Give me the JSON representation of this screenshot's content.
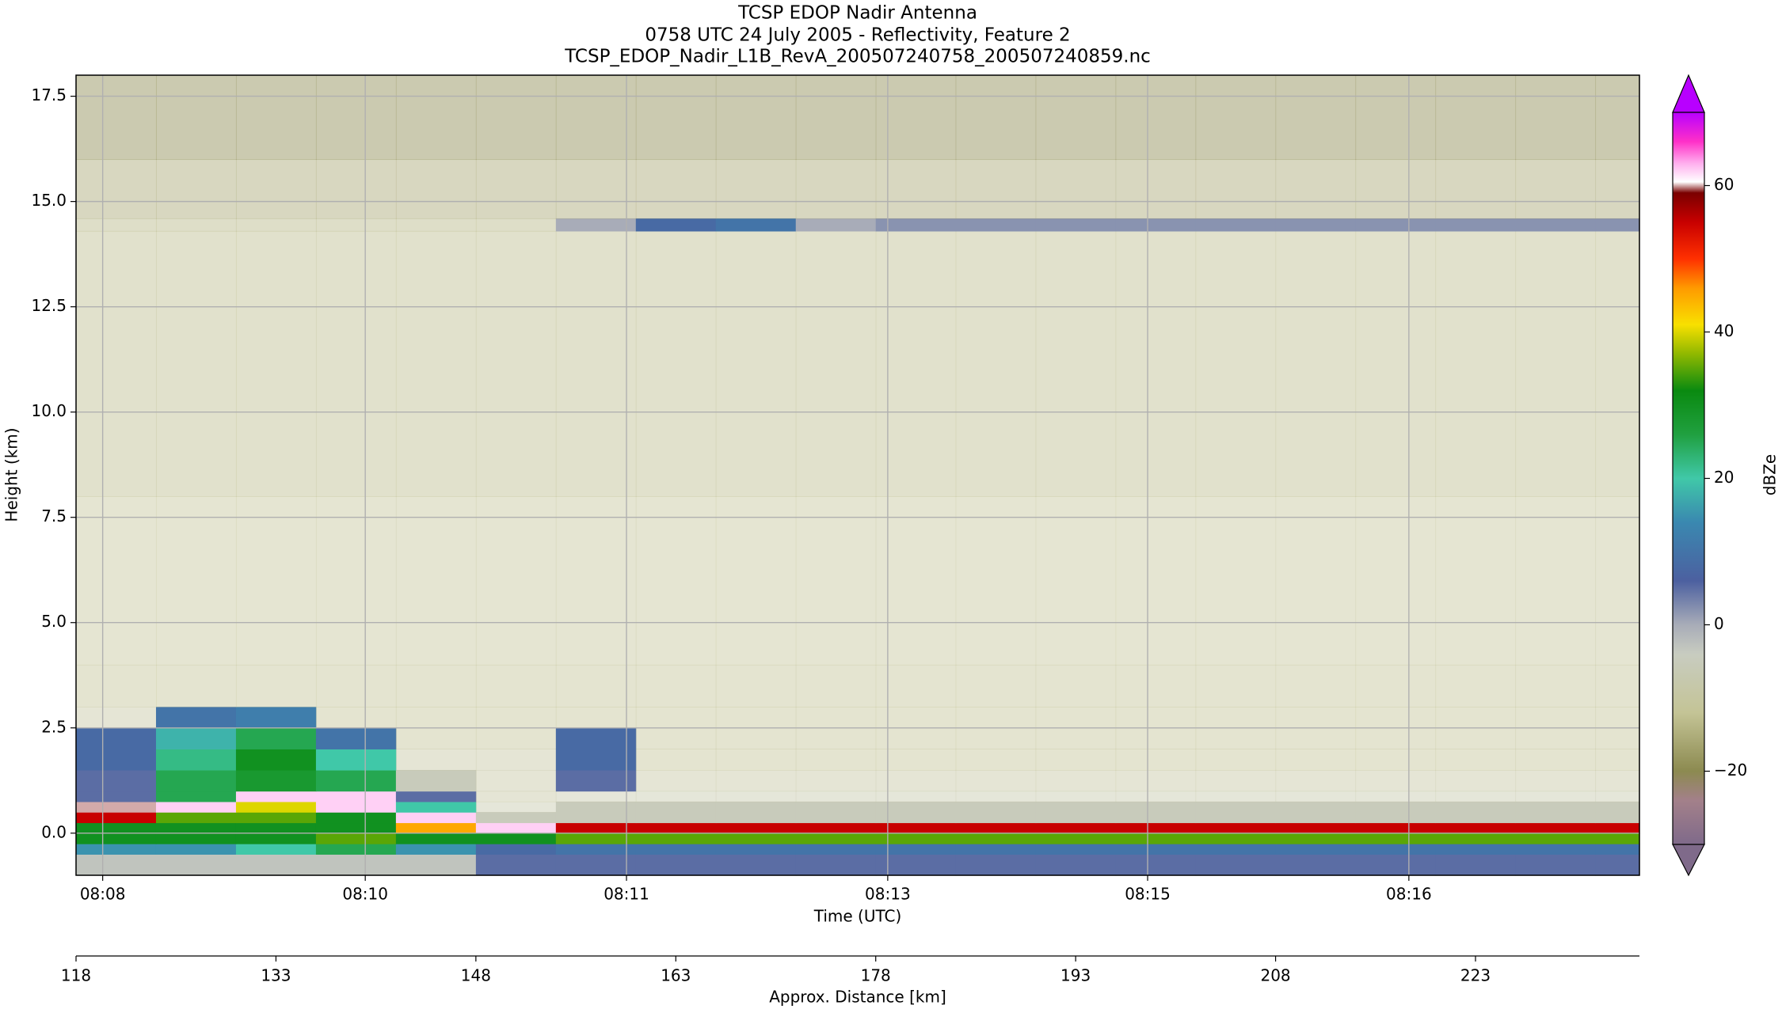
{
  "chart_data": {
    "type": "heatmap",
    "title": [
      "TCSP EDOP Nadir Antenna",
      "0758 UTC 24 July 2005 - Reflectivity, Feature 2",
      "TCSP_EDOP_Nadir_L1B_RevA_200507240758_200507240859.nc"
    ],
    "ylabel": "Height (km)",
    "xlabel": "Time (UTC)",
    "x2label": "Approx. Distance [km]",
    "cbar_label": "dBZe",
    "xlim": [
      118,
      235.3
    ],
    "ylim": [
      -1.0,
      18.0
    ],
    "yticks": [
      {
        "value": 0,
        "label": "0.0"
      },
      2.5,
      {
        "value": 5,
        "label": "5.0"
      },
      7.5,
      {
        "value": 10,
        "label": "10.0"
      },
      12.5,
      {
        "value": 15,
        "label": "15.0"
      },
      17.5
    ],
    "time_ticks": [
      {
        "value": 120,
        "label": "08:08"
      },
      {
        "value": 139.7,
        "label": "08:10"
      },
      {
        "value": 159.3,
        "label": "08:11"
      },
      {
        "value": 178.9,
        "label": "08:13"
      },
      {
        "value": 198.4,
        "label": "08:15"
      },
      {
        "value": 218,
        "label": "08:16"
      }
    ],
    "xticks": [
      118,
      133,
      148,
      163,
      178,
      193,
      208,
      223
    ],
    "grid": true,
    "clim": [
      -30,
      70
    ],
    "cbar_ticks": [
      {
        "value": -20,
        "label": "−20"
      },
      0,
      20,
      40,
      60
    ],
    "colormap": [
      {
        "value": -30,
        "color": "#7f6a8a"
      },
      {
        "value": -24,
        "color": "#a3808a"
      },
      {
        "value": -20,
        "color": "#8c8a50"
      },
      {
        "value": -12,
        "color": "#c4c496"
      },
      {
        "value": -4,
        "color": "#c8ccc0"
      },
      {
        "value": 0,
        "color": "#a8acb8"
      },
      {
        "value": 6,
        "color": "#4c60a0"
      },
      {
        "value": 14,
        "color": "#3a88b0"
      },
      {
        "value": 20,
        "color": "#40c8a8"
      },
      {
        "value": 26,
        "color": "#20a040"
      },
      {
        "value": 32,
        "color": "#0a8a10"
      },
      {
        "value": 37,
        "color": "#90b800"
      },
      {
        "value": 41,
        "color": "#f8e000"
      },
      {
        "value": 46,
        "color": "#ff9a00"
      },
      {
        "value": 50,
        "color": "#ff3000"
      },
      {
        "value": 55,
        "color": "#c80000"
      },
      {
        "value": 59,
        "color": "#7a0000"
      },
      {
        "value": 60.5,
        "color": "#ffffff"
      },
      {
        "value": 63,
        "color": "#ffb0ee"
      },
      {
        "value": 66,
        "color": "#ff30c8"
      },
      {
        "value": 70,
        "color": "#b800ff"
      }
    ],
    "x_bins": [
      118,
      124,
      130,
      136,
      142,
      148,
      154,
      160,
      166,
      172,
      178,
      184,
      190,
      196,
      202,
      208,
      214,
      220,
      226,
      232,
      235.3
    ],
    "y_bins": [
      -1,
      -0.5,
      -0.25,
      0,
      0.25,
      0.5,
      0.75,
      1,
      1.5,
      2,
      2.5,
      3,
      4,
      8,
      14.3,
      14.6,
      16,
      18
    ],
    "z": [
      [
        -3,
        -3,
        -3,
        -3,
        -3,
        5,
        5,
        5,
        5,
        5,
        5,
        5,
        5,
        5,
        5,
        5,
        5,
        5,
        5,
        5
      ],
      [
        15,
        15,
        20,
        25,
        15,
        8,
        10,
        10,
        10,
        10,
        10,
        10,
        10,
        10,
        10,
        10,
        10,
        10,
        10,
        10
      ],
      [
        30,
        30,
        30,
        35,
        30,
        30,
        35,
        35,
        35,
        35,
        35,
        35,
        35,
        35,
        35,
        35,
        35,
        35,
        35,
        35
      ],
      [
        30,
        30,
        30,
        30,
        45,
        62,
        55,
        55,
        55,
        55,
        55,
        55,
        55,
        55,
        55,
        55,
        55,
        55,
        55,
        55
      ],
      [
        55,
        35,
        35,
        30,
        62,
        -5,
        -5,
        -5,
        -5,
        -5,
        -5,
        -5,
        -5,
        -5,
        -5,
        -5,
        -5,
        -5,
        -5,
        -5
      ],
      [
        60,
        62,
        40,
        62,
        20,
        -8,
        -5,
        -5,
        -5,
        -5,
        -5,
        -5,
        -5,
        -5,
        -5,
        -5,
        -5,
        -5,
        -5,
        -5
      ],
      [
        5,
        25,
        62,
        62,
        5,
        -10,
        -8,
        -8,
        -8,
        -8,
        -8,
        -8,
        -8,
        -8,
        -8,
        -8,
        -8,
        -8,
        -8,
        -8
      ],
      [
        5,
        25,
        28,
        25,
        -5,
        -10,
        5,
        -10,
        -10,
        -10,
        -10,
        -10,
        -10,
        -10,
        -10,
        -10,
        -10,
        -10,
        -10,
        -10
      ],
      [
        8,
        22,
        30,
        20,
        -10,
        -10,
        8,
        -12,
        -12,
        -12,
        -12,
        -12,
        -12,
        -12,
        -12,
        -12,
        -12,
        -12,
        -12,
        -12
      ],
      [
        8,
        18,
        25,
        10,
        -12,
        -12,
        8,
        -12,
        -12,
        -12,
        -12,
        -12,
        -12,
        -12,
        -12,
        -12,
        -12,
        -12,
        -12,
        -12
      ],
      [
        -10,
        10,
        12,
        -12,
        -12,
        -12,
        -12,
        -12,
        -12,
        -12,
        -12,
        -12,
        -12,
        -12,
        -12,
        -12,
        -12,
        -12,
        -12,
        -12
      ],
      [
        -12,
        -12,
        -12,
        -12,
        -12,
        -12,
        -12,
        -12,
        -12,
        -12,
        -12,
        -12,
        -12,
        -12,
        -12,
        -12,
        -12,
        -12,
        -12,
        -12
      ],
      [
        -11,
        -11,
        -11,
        -11,
        -11,
        -11,
        -11,
        -11,
        -11,
        -11,
        -11,
        -11,
        -11,
        -11,
        -11,
        -11,
        -11,
        -11,
        -11,
        -11
      ],
      [
        -13,
        -13,
        -13,
        -13,
        -13,
        -13,
        -13,
        -13,
        -13,
        -13,
        -13,
        -13,
        -13,
        -13,
        -13,
        -13,
        -13,
        -13,
        -13,
        -13
      ],
      [
        -14,
        -14,
        -14,
        -14,
        -14,
        -14,
        0,
        8,
        10,
        0,
        2,
        2,
        2,
        2,
        2,
        2,
        2,
        2,
        2,
        2
      ],
      [
        -16,
        -16,
        -16,
        -16,
        -16,
        -16,
        -16,
        -16,
        -16,
        -16,
        -16,
        -16,
        -16,
        -16,
        -16,
        -16,
        -16,
        -16,
        -16,
        -16
      ],
      [
        -20,
        -20,
        -20,
        -20,
        -20,
        -20,
        -20,
        -20,
        -20,
        -20,
        -20,
        -20,
        -20,
        -20,
        -20,
        -20,
        -20,
        -20,
        -20,
        -20
      ]
    ]
  }
}
